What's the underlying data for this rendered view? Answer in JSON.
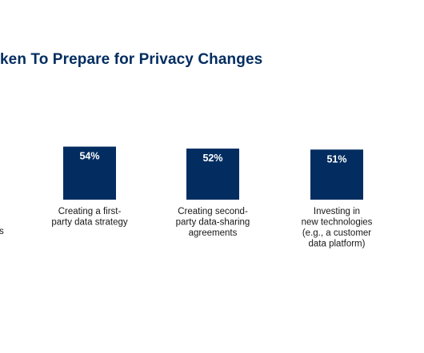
{
  "title": {
    "text": "ken To Prepare for Privacy Changes"
  },
  "edge_text": {
    "text": "s"
  },
  "colors": {
    "title": "#032d60",
    "bar": "#032d60",
    "bar_label": "#ffffff",
    "axis_label": "#181818"
  },
  "chart_data": {
    "type": "bar",
    "title": "ken To Prepare for Privacy Changes",
    "categories": [
      [
        "Creating a first-",
        "party data strategy"
      ],
      [
        "Creating second-",
        "party data-sharing",
        "agreements"
      ],
      [
        "Investing in",
        "new technologies",
        "(e.g., a customer",
        "data platform)"
      ]
    ],
    "values": [
      54,
      52,
      51
    ],
    "value_labels": [
      "54%",
      "52%",
      "51%"
    ],
    "ylabel": "",
    "xlabel": "",
    "grid": false,
    "legend": "none"
  }
}
